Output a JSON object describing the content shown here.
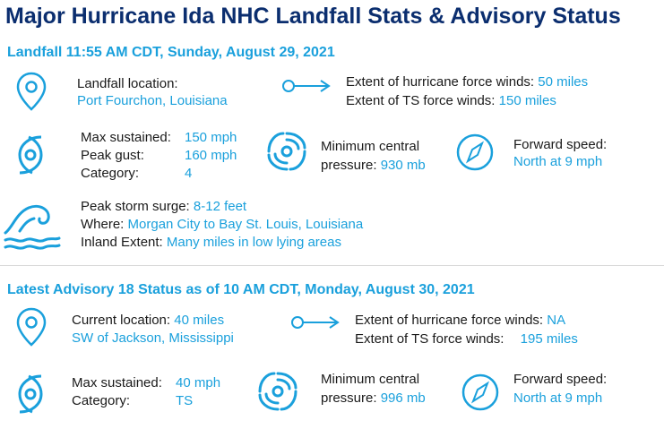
{
  "title": "Major Hurricane Ida NHC Landfall Stats & Advisory Status",
  "colors": {
    "title": "#0b2e6f",
    "accent": "#1aa0dc",
    "text": "#1a1a1a"
  },
  "landfall": {
    "heading": "Landfall 11:55 AM CDT, Sunday, August 29, 2021",
    "location_label": "Landfall location:",
    "location_value": "Port Fourchon, Louisiana",
    "hurricane_winds_label": "Extent of hurricane force winds:",
    "hurricane_winds_value": "50 miles",
    "ts_winds_label": "Extent of TS force winds:",
    "ts_winds_value": "150 miles",
    "max_sustained_label": "Max sustained:",
    "max_sustained_value": "150 mph",
    "peak_gust_label": "Peak gust:",
    "peak_gust_value": "160 mph",
    "category_label": "Category:",
    "category_value": "4",
    "pressure_label_1": "Minimum central",
    "pressure_label_2": "pressure:",
    "pressure_value": "930 mb",
    "forward_label": "Forward speed:",
    "forward_value": "North at 9 mph",
    "surge_label": "Peak storm surge:",
    "surge_value": "8-12 feet",
    "where_label": "Where:",
    "where_value": "Morgan City to Bay St. Louis, Louisiana",
    "inland_label": "Inland Extent:",
    "inland_value": "Many miles in low lying areas"
  },
  "advisory": {
    "heading": "Latest Advisory 18 Status as of 10 AM CDT, Monday, August 30, 2021",
    "location_label": "Current location:",
    "location_value_1": "40 miles",
    "location_value_2": "SW of Jackson, Mississippi",
    "hurricane_winds_label": "Extent of hurricane force winds:",
    "hurricane_winds_value": "NA",
    "ts_winds_label": "Extent of TS force winds:",
    "ts_winds_value": "195 miles",
    "max_sustained_label": "Max sustained:",
    "max_sustained_value": "40 mph",
    "category_label": "Category:",
    "category_value": "TS",
    "pressure_label_1": "Minimum central",
    "pressure_label_2": "pressure:",
    "pressure_value": "996 mb",
    "forward_label": "Forward speed:",
    "forward_value": "North at 9 mph"
  },
  "icons": [
    "location-pin-icon",
    "arrow-right-icon",
    "hurricane-icon",
    "cyclone-spiral-icon",
    "compass-icon",
    "wave-icon"
  ]
}
